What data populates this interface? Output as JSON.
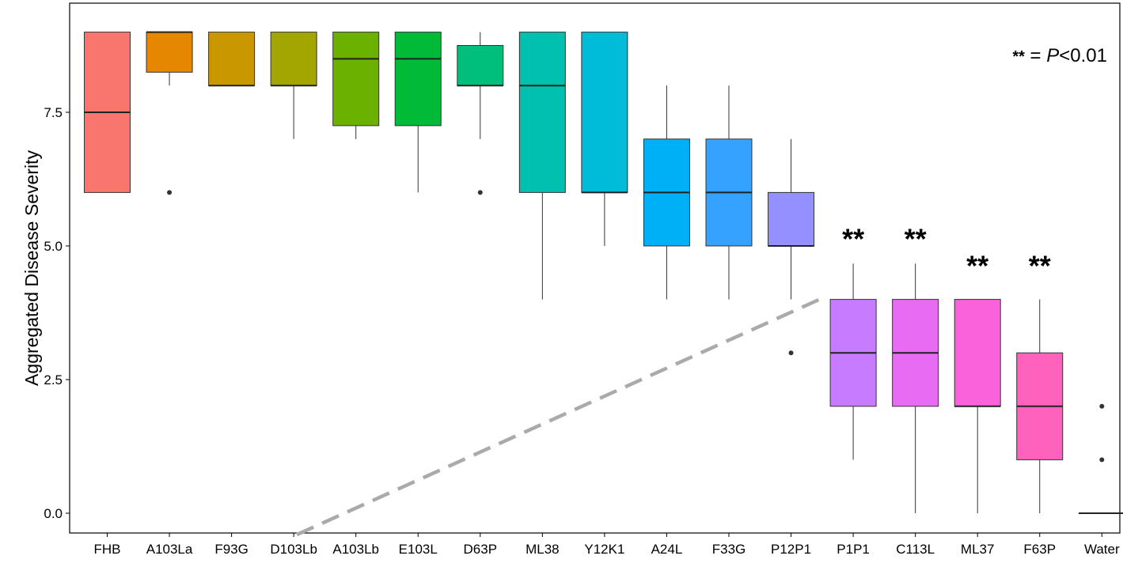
{
  "chart_data": {
    "type": "box",
    "title": "",
    "xlabel": "",
    "ylabel": "Aggregated Disease Severity",
    "ylim": [
      -0.4,
      9.3
    ],
    "yticks": [
      "0.0",
      "2.5",
      "5.0",
      "7.5"
    ],
    "grid": false,
    "categories": [
      "FHB",
      "A103La",
      "F93G",
      "D103Lb",
      "A103Lb",
      "E103L",
      "D63P",
      "ML38",
      "Y12K1",
      "A24L",
      "F33G",
      "P12P1",
      "P1P1",
      "C113L",
      "ML37",
      "F63P",
      "Water"
    ],
    "boxes": [
      {
        "category": "FHB",
        "min": 6,
        "q1": 6,
        "median": 7.5,
        "q3": 9,
        "max": 9,
        "outliers": [],
        "color": "#F8766D"
      },
      {
        "category": "A103La",
        "min": 8,
        "q1": 8.25,
        "median": 9,
        "q3": 9,
        "max": 9,
        "outliers": [
          6
        ],
        "color": "#E58700"
      },
      {
        "category": "F93G",
        "min": 8,
        "q1": 8,
        "median": 8,
        "q3": 9,
        "max": 9,
        "outliers": [],
        "color": "#C99800"
      },
      {
        "category": "D103Lb",
        "min": 7,
        "q1": 8,
        "median": 8,
        "q3": 9,
        "max": 9,
        "outliers": [],
        "color": "#A3A500"
      },
      {
        "category": "A103Lb",
        "min": 7,
        "q1": 7.25,
        "median": 8.5,
        "q3": 9,
        "max": 9,
        "outliers": [],
        "color": "#6BB100"
      },
      {
        "category": "E103L",
        "min": 6,
        "q1": 7.25,
        "median": 8.5,
        "q3": 9,
        "max": 9,
        "outliers": [],
        "color": "#00BA38"
      },
      {
        "category": "D63P",
        "min": 7,
        "q1": 8,
        "median": 8,
        "q3": 8.75,
        "max": 9,
        "outliers": [
          6
        ],
        "color": "#00BF7D"
      },
      {
        "category": "ML38",
        "min": 4,
        "q1": 6,
        "median": 8,
        "q3": 9,
        "max": 9,
        "outliers": [],
        "color": "#00C0AF"
      },
      {
        "category": "Y12K1",
        "min": 5,
        "q1": 6,
        "median": 6,
        "q3": 9,
        "max": 9,
        "outliers": [],
        "color": "#00BCD8"
      },
      {
        "category": "A24L",
        "min": 4,
        "q1": 5,
        "median": 6,
        "q3": 7,
        "max": 8,
        "outliers": [],
        "color": "#00B0F6"
      },
      {
        "category": "F33G",
        "min": 4,
        "q1": 5,
        "median": 6,
        "q3": 7,
        "max": 8,
        "outliers": [],
        "color": "#35A2FF"
      },
      {
        "category": "P12P1",
        "min": 4,
        "q1": 5,
        "median": 5,
        "q3": 6,
        "max": 7,
        "outliers": [
          3
        ],
        "color": "#9590FF"
      },
      {
        "category": "P1P1",
        "min": 1,
        "q1": 2,
        "median": 3,
        "q3": 4,
        "max": 4.67,
        "outliers": [],
        "color": "#C77CFF"
      },
      {
        "category": "C113L",
        "min": 0,
        "q1": 2,
        "median": 3,
        "q3": 4,
        "max": 4.67,
        "outliers": [],
        "color": "#E76BF3"
      },
      {
        "category": "ML37",
        "min": 0,
        "q1": 2,
        "median": 2,
        "q3": 4,
        "max": 4,
        "outliers": [],
        "color": "#FA62DB"
      },
      {
        "category": "F63P",
        "min": 0,
        "q1": 1,
        "median": 2,
        "q3": 3,
        "max": 4,
        "outliers": [],
        "color": "#FF62BC"
      },
      {
        "category": "Water",
        "min": 0,
        "q1": 0,
        "median": 0,
        "q3": 0,
        "max": 0,
        "outliers": [
          1,
          2
        ],
        "color": "#FF6C91"
      }
    ],
    "significance": {
      "marker": "**",
      "categories": [
        "P1P1",
        "C113L",
        "ML37",
        "F63P"
      ],
      "values": [
        5.3,
        5.3,
        4.8,
        4.8
      ]
    },
    "legend": {
      "marker": "**",
      "text_eq": " = ",
      "text_p": "P",
      "text_rest": "<0.01",
      "placement": "top-right"
    },
    "trend_line": {
      "style": "dashed",
      "color": "#AAAAAA",
      "x_start": "D103Lb",
      "y_start": -0.4,
      "x_end": "P12P1",
      "y_end": 4.0
    }
  }
}
